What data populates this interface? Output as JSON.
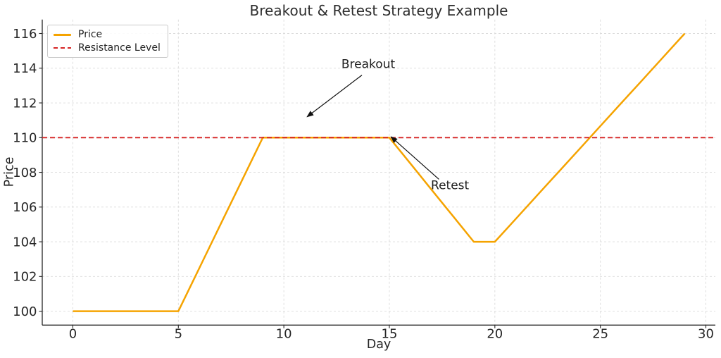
{
  "chart_data": {
    "type": "line",
    "title": "Breakout & Retest Strategy Example",
    "xlabel": "Day",
    "ylabel": "Price",
    "xlim": [
      -1.45,
      30.45
    ],
    "ylim": [
      99.2,
      116.8
    ],
    "xticks": [
      0,
      5,
      10,
      15,
      20,
      25,
      30
    ],
    "yticks": [
      100,
      102,
      104,
      106,
      108,
      110,
      112,
      114,
      116
    ],
    "grid": true,
    "grid_style": "dashed",
    "legend": {
      "position": "upper-left",
      "entries": [
        {
          "label": "Price",
          "color": "#F5A300",
          "style": "solid"
        },
        {
          "label": "Resistance Level",
          "color": "#D62323",
          "style": "dashed"
        }
      ]
    },
    "series": [
      {
        "name": "Price",
        "type": "line",
        "color": "#F5A300",
        "width": 2.5,
        "x": [
          0,
          1,
          2,
          3,
          4,
          5,
          6,
          7,
          8,
          9,
          10,
          11,
          12,
          13,
          14,
          15,
          16,
          17,
          18,
          19,
          20,
          21,
          22,
          23,
          24,
          25,
          26,
          27,
          28,
          29
        ],
        "y": [
          100,
          100,
          100,
          100,
          100,
          100,
          102.5,
          105,
          107.5,
          110,
          110,
          110,
          110,
          110,
          110,
          110,
          108.5,
          107,
          105.5,
          104,
          104,
          105.33,
          106.67,
          108,
          109.33,
          110.67,
          112,
          113.33,
          114.67,
          116
        ]
      },
      {
        "name": "Resistance Level",
        "type": "hline",
        "color": "#D62323",
        "width": 1.8,
        "dash": "7 4",
        "y": 110
      }
    ],
    "annotations": [
      {
        "text": "Breakout",
        "anchor": "middle",
        "text_x": 14.0,
        "text_y": 114.2,
        "tail_x": 13.7,
        "tail_y": 113.6,
        "tip_x": 11.1,
        "tip_y": 111.2
      },
      {
        "text": "Retest",
        "anchor": "start",
        "text_x": 16.97,
        "text_y": 107.2,
        "tail_x": 17.35,
        "tail_y": 107.6,
        "tip_x": 15.08,
        "tip_y": 110.05
      }
    ],
    "colors": {
      "axis": "#262626",
      "grid": "#DBDBDB",
      "text": "#262626",
      "annotation": "#111111"
    }
  }
}
